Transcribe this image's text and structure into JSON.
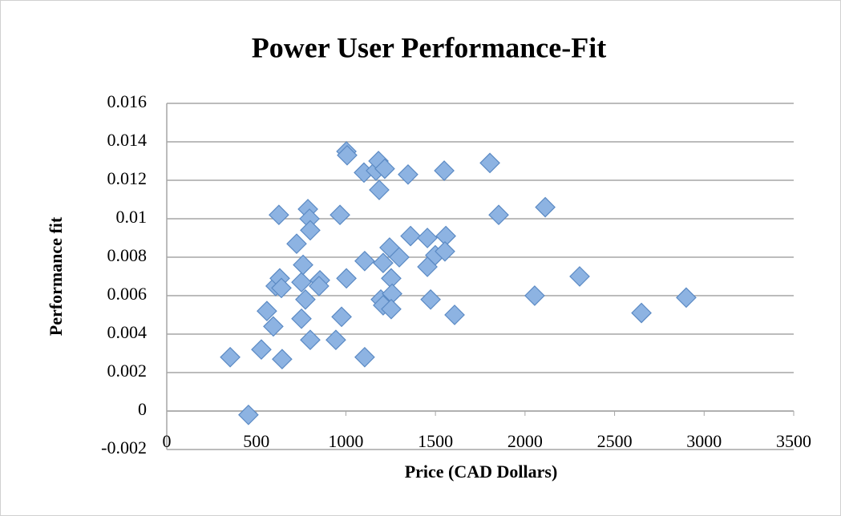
{
  "chart_data": {
    "type": "scatter",
    "title": "Power User Performance-Fit",
    "xlabel": "Price (CAD Dollars)",
    "ylabel": "Performance fit",
    "color": "#8db3e2",
    "x": [
      354,
      456,
      528,
      559,
      595,
      608,
      631,
      626,
      644,
      640,
      725,
      752,
      761,
      752,
      774,
      788,
      797,
      801,
      801,
      855,
      850,
      967,
      944,
      976,
      1003,
      1003,
      1007,
      1101,
      1105,
      1105,
      1168,
      1182,
      1186,
      1208,
      1217,
      1195,
      1208,
      1244,
      1253,
      1258,
      1253,
      1298,
      1347,
      1361,
      1455,
      1455,
      1473,
      1499,
      1549,
      1558,
      1553,
      1607,
      1804,
      1853,
      2054,
      2113,
      2305,
      2650,
      2900
    ],
    "values": [
      0.0028,
      -0.0002,
      0.0032,
      0.0052,
      0.0044,
      0.0065,
      0.0069,
      0.0102,
      0.0027,
      0.0064,
      0.0087,
      0.0067,
      0.0076,
      0.0048,
      0.0058,
      0.0105,
      0.01,
      0.0094,
      0.0037,
      0.0068,
      0.0065,
      0.0102,
      0.0037,
      0.0049,
      0.0069,
      0.0135,
      0.0133,
      0.0124,
      0.0078,
      0.0028,
      0.0125,
      0.013,
      0.0115,
      0.0077,
      0.0126,
      0.0058,
      0.0055,
      0.0085,
      0.0069,
      0.0061,
      0.0053,
      0.008,
      0.0123,
      0.0091,
      0.009,
      0.0075,
      0.0058,
      0.0081,
      0.0125,
      0.0091,
      0.0083,
      0.005,
      0.0129,
      0.0102,
      0.006,
      0.0106,
      0.007,
      0.0051,
      0.0059
    ],
    "xlim": [
      0,
      3500
    ],
    "xticks": [
      0,
      500,
      1000,
      1500,
      2000,
      2500,
      3000,
      3500
    ],
    "ylim": [
      -0.002,
      0.016
    ],
    "yticks": [
      -0.002,
      0,
      0.002,
      0.004,
      0.006,
      0.008,
      0.01,
      0.012,
      0.014,
      0.016
    ],
    "grid": true
  }
}
